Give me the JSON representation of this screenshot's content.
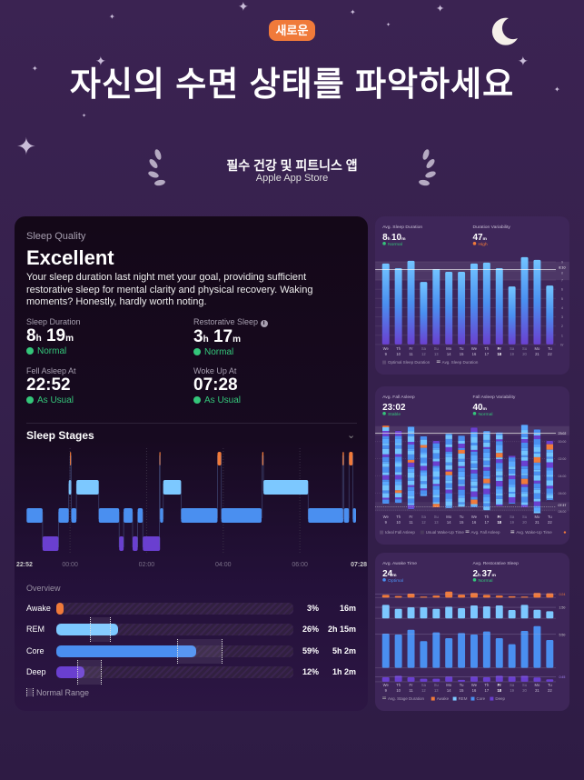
{
  "promo": {
    "badge": "새로운",
    "headline": "자신의 수면 상태를 파악하세요",
    "award_title": "필수 건강 및 피트니스 앱",
    "award_sub": "Apple App Store"
  },
  "colors": {
    "awake": "#f07a3a",
    "rem": "#7cc8ff",
    "core": "#4a8ff0",
    "deep": "#6a3fd0",
    "ok": "#34c67a",
    "badge": "#f07a3a"
  },
  "card": {
    "quality_label": "Sleep Quality",
    "quality": "Excellent",
    "summary": "Your sleep duration last night met your goal, providing sufficient restorative sleep for mental clarity and physical recovery. Waking moments? Honestly, hardly worth noting.",
    "metrics": [
      {
        "label": "Sleep Duration",
        "h": "8",
        "m": "19",
        "status": "Normal"
      },
      {
        "label": "Restorative Sleep",
        "h": "3",
        "m": "17",
        "status": "Normal",
        "info_icon": "info-icon"
      },
      {
        "label": "Fell Asleep At",
        "value": "22:52",
        "status": "As Usual"
      },
      {
        "label": "Woke Up At",
        "value": "07:28",
        "status": "As Usual"
      }
    ],
    "stages_title": "Sleep Stages",
    "stages_chart": {
      "start": "22:52",
      "end": "07:28",
      "ticks": [
        "22:52",
        "00:00",
        "02:00",
        "04:00",
        "06:00",
        "07:28"
      ],
      "segments": [
        [
          "core",
          "22:52",
          "23:17"
        ],
        [
          "deep",
          "23:17",
          "23:42"
        ],
        [
          "core",
          "23:42",
          "23:58"
        ],
        [
          "rem",
          "23:58",
          "00:02"
        ],
        [
          "awake",
          "00:00",
          "00:01"
        ],
        [
          "core",
          "00:02",
          "00:10"
        ],
        [
          "rem",
          "00:10",
          "00:45"
        ],
        [
          "core",
          "00:45",
          "01:17"
        ],
        [
          "deep",
          "01:17",
          "01:24"
        ],
        [
          "core",
          "01:24",
          "01:38"
        ],
        [
          "deep",
          "01:38",
          "01:46"
        ],
        [
          "core",
          "01:46",
          "01:54"
        ],
        [
          "deep",
          "01:54",
          "02:21"
        ],
        [
          "awake",
          "02:20",
          "02:21"
        ],
        [
          "core",
          "02:21",
          "02:26"
        ],
        [
          "rem",
          "02:26",
          "02:54"
        ],
        [
          "core",
          "02:54",
          "03:51"
        ],
        [
          "awake",
          "03:51",
          "03:57"
        ],
        [
          "core",
          "03:57",
          "05:00"
        ],
        [
          "awake",
          "05:01",
          "05:03"
        ],
        [
          "rem",
          "05:03",
          "06:13"
        ],
        [
          "core",
          "06:13",
          "07:08"
        ],
        [
          "awake",
          "07:07",
          "07:09"
        ],
        [
          "core",
          "07:09",
          "07:17"
        ],
        [
          "awake",
          "07:17",
          "07:23"
        ],
        [
          "core",
          "07:23",
          "07:28"
        ]
      ]
    },
    "overview_title": "Overview",
    "overview": [
      {
        "stage": "awake",
        "label": "Awake",
        "pct": "3%",
        "value": 3,
        "dur": "16m"
      },
      {
        "stage": "rem",
        "label": "REM",
        "pct": "26%",
        "value": 26,
        "dur": "2h 15m",
        "range": [
          14,
          23
        ]
      },
      {
        "stage": "core",
        "label": "Core",
        "pct": "59%",
        "value": 59,
        "dur": "5h 2m",
        "range": [
          51,
          70
        ]
      },
      {
        "stage": "deep",
        "label": "Deep",
        "pct": "12%",
        "value": 12,
        "dur": "1h 2m",
        "range": [
          9,
          19
        ]
      }
    ],
    "legend": "Normal Range"
  },
  "days": [
    [
      "We",
      "9"
    ],
    [
      "Th",
      "10"
    ],
    [
      "Fr",
      "11"
    ],
    [
      "Sa",
      "12"
    ],
    [
      "Su",
      "13"
    ],
    [
      "Mo",
      "14"
    ],
    [
      "Tu",
      "15"
    ],
    [
      "We",
      "16"
    ],
    [
      "Th",
      "17"
    ],
    [
      "Fr",
      "18"
    ],
    [
      "Sa",
      "19"
    ],
    [
      "Su",
      "20"
    ],
    [
      "Mo",
      "21"
    ],
    [
      "Tu",
      "22"
    ]
  ],
  "chart_data": [
    {
      "type": "bar",
      "stats": [
        {
          "label": "Avg. Sleep Duration",
          "h": "8",
          "m": "10",
          "status": "Normal",
          "status_color": "#34c67a"
        },
        {
          "label": "Duration Variability",
          "v": "47",
          "unit": "m",
          "status": "High",
          "status_color": "#f07a3a"
        }
      ],
      "values": [
        8.8,
        8.3,
        9.1,
        6.8,
        8.2,
        7.9,
        7.9,
        8.8,
        8.9,
        8.3,
        6.3,
        9.5,
        9.2,
        6.4
      ],
      "avg_label": "8:10",
      "avg": 8.17,
      "optimal": [
        7,
        9
      ],
      "yticks": [
        "9",
        "8",
        "7",
        "6",
        "5",
        "4",
        "3",
        "2",
        "1",
        "hr"
      ],
      "legend": [
        "Optimal Sleep Duration",
        "Avg. Sleep Duration"
      ]
    },
    {
      "type": "bar",
      "stats": [
        {
          "label": "Avg. Fall Asleep",
          "v": "23:02",
          "unit": "",
          "status": "Stable",
          "status_color": "#34c67a"
        },
        {
          "label": "Fall Asleep Variability",
          "v": "40",
          "unit": "m",
          "status": "Normal",
          "status_color": "#34c67a"
        }
      ],
      "ranges": [
        [
          "22:08",
          "07:16"
        ],
        [
          "22:44",
          "07:11"
        ],
        [
          "22:15",
          "07:54"
        ],
        [
          "23:22",
          "06:23"
        ],
        [
          "23:54",
          "07:41"
        ],
        [
          "23:05",
          "07:47"
        ],
        [
          "23:18",
          "07:37"
        ],
        [
          "22:21",
          "07:41"
        ],
        [
          "22:46",
          "08:02"
        ],
        [
          "22:55",
          "07:32"
        ],
        [
          "01:39",
          "07:16"
        ],
        [
          "22:02",
          "07:41"
        ],
        [
          "22:34",
          "08:23"
        ],
        [
          "23:54",
          "06:51"
        ]
      ],
      "avg_label": "23:02",
      "wake_label": "07:37",
      "yticks": [
        "00:00",
        "02:00",
        "04:00",
        "06:00",
        "08:00"
      ],
      "legend": [
        "Ideal Fall Asleep",
        "Usual Wake-Up Time",
        "Avg. Fall Asleep",
        "Avg. Wake-Up Time"
      ]
    },
    {
      "type": "bar",
      "stats": [
        {
          "label": "Avg. Awake Time",
          "v": "24",
          "unit": "m",
          "status": "Optimal",
          "status_color": "#4a8ff0"
        },
        {
          "label": "Avg. Restorative Sleep",
          "h": "2",
          "m": "37",
          "status": "Normal",
          "status_color": "#34c67a"
        }
      ],
      "series": [
        {
          "name": "Awake",
          "values": [
            20,
            12,
            30,
            8,
            15,
            45,
            22,
            35,
            20,
            15,
            10,
            8,
            35,
            32
          ],
          "avg": "0:24"
        },
        {
          "name": "REM",
          "values": [
            134,
            95,
            110,
            110,
            95,
            116,
            101,
            128,
            119,
            128,
            83,
            134,
            86,
            71
          ],
          "avg": "1:50"
        },
        {
          "name": "Core",
          "values": [
            356,
            347,
            397,
            278,
            369,
            309,
            363,
            347,
            379,
            309,
            246,
            385,
            435,
            290
          ],
          "avg": "5:50"
        },
        {
          "name": "Deep",
          "values": [
            42,
            56,
            42,
            28,
            28,
            48,
            17,
            48,
            42,
            56,
            48,
            56,
            39,
            22
          ],
          "avg": "0:45"
        }
      ],
      "units": "minutes",
      "legend": [
        "Avg. Stage Duration",
        "Awake",
        "REM",
        "Core",
        "Deep"
      ]
    }
  ]
}
